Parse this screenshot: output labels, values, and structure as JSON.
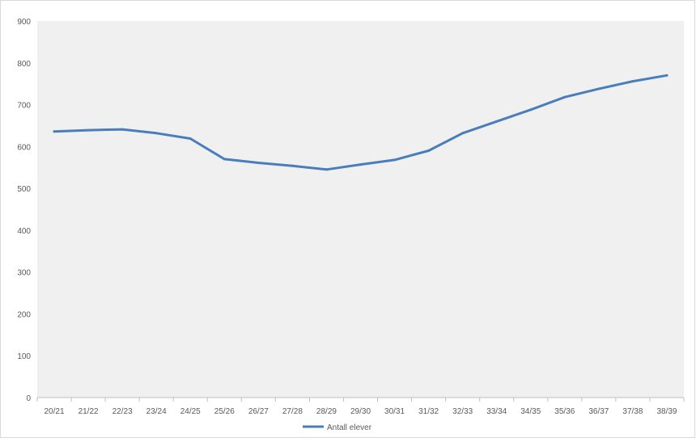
{
  "chart_data": {
    "type": "line",
    "categories": [
      "20/21",
      "21/22",
      "22/23",
      "23/24",
      "24/25",
      "25/26",
      "26/27",
      "27/28",
      "28/29",
      "29/30",
      "30/31",
      "31/32",
      "32/33",
      "33/34",
      "34/35",
      "35/36",
      "36/37",
      "37/38",
      "38/39"
    ],
    "series": [
      {
        "name": "Antall elever",
        "values": [
          636,
          639,
          641,
          632,
          619,
          570,
          561,
          554,
          545,
          557,
          568,
          590,
          632,
          660,
          688,
          718,
          738,
          756,
          770
        ]
      }
    ],
    "ylim": [
      0,
      900
    ],
    "yticks": [
      0,
      100,
      200,
      300,
      400,
      500,
      600,
      700,
      800,
      900
    ],
    "grid": false,
    "legend": "bottom",
    "colors": {
      "line": "#4a7ebb",
      "plot_bg": "#f0f0f0",
      "axis": "#bfbfbf",
      "text": "#595959"
    }
  }
}
